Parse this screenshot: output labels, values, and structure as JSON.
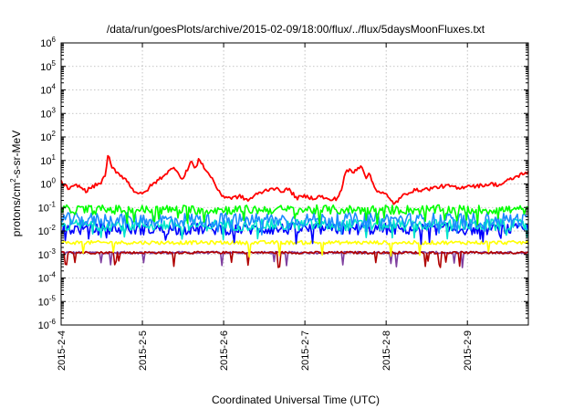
{
  "chart_data": {
    "type": "line",
    "title": "/data/run/goesPlots/archive/2015-02-09/18:00/flux/../flux/5daysMoonFluxes.txt",
    "xlabel": "Coordinated Universal Time (UTC)",
    "ylabel_parts": {
      "base": "protons/cm",
      "sup": "2",
      "rest": "-s-sr-MeV"
    },
    "x_tick_labels": [
      "2015-2-4",
      "2015-2-5",
      "2015-2-6",
      "2015-2-7",
      "2015-2-8",
      "2015-2-9"
    ],
    "y_scale": "log",
    "ylim_exponents": [
      -6,
      6
    ],
    "y_tick_base": "10",
    "y_tick_exponents": [
      "-6",
      "-5",
      "-4",
      "-3",
      "-2",
      "-1",
      "0",
      "1",
      "2",
      "3",
      "4",
      "5",
      "6"
    ],
    "x_range_days": [
      "2015-02-04 00:00",
      "2015-02-09 18:00"
    ],
    "grid": true,
    "legend": "none",
    "series": [
      {
        "color": "#ff0000",
        "x_days": [
          0,
          0.1,
          0.2,
          0.3,
          0.4,
          0.5,
          0.55,
          0.58,
          0.62,
          0.7,
          0.8,
          0.9,
          1.0,
          1.1,
          1.2,
          1.3,
          1.4,
          1.5,
          1.55,
          1.6,
          1.65,
          1.7,
          1.75,
          1.8,
          1.85,
          1.95,
          2.0,
          2.1,
          2.2,
          2.3,
          2.4,
          2.5,
          2.6,
          2.7,
          2.8,
          2.9,
          3.0,
          3.1,
          3.2,
          3.3,
          3.4,
          3.45,
          3.5,
          3.55,
          3.6,
          3.65,
          3.7,
          3.75,
          3.8,
          3.85,
          3.9,
          4.0,
          4.05,
          4.1,
          4.15,
          4.2,
          4.3,
          4.4,
          4.5,
          4.6,
          4.7,
          4.8,
          4.9,
          5.0,
          5.1,
          5.2,
          5.3,
          5.4,
          5.5,
          5.6,
          5.7,
          5.75
        ],
        "y": [
          1.2,
          0.6,
          0.9,
          0.5,
          0.8,
          1.2,
          3,
          18,
          5,
          3,
          1.5,
          0.5,
          0.35,
          0.8,
          1.5,
          3,
          5,
          1.5,
          4,
          10,
          4,
          12,
          6,
          3,
          2,
          0.4,
          0.3,
          0.25,
          0.3,
          0.2,
          0.35,
          0.5,
          0.7,
          0.5,
          0.6,
          0.25,
          0.3,
          0.25,
          0.3,
          0.2,
          0.25,
          0.6,
          3,
          4,
          3,
          5,
          6,
          2,
          2.5,
          0.8,
          0.5,
          0.35,
          0.2,
          0.15,
          0.2,
          0.3,
          0.5,
          0.55,
          0.6,
          0.7,
          0.8,
          0.8,
          0.6,
          0.9,
          0.8,
          0.9,
          1.0,
          0.9,
          1.4,
          2,
          3,
          3
        ],
        "noise_decades": 0.08
      },
      {
        "color": "#00ff00",
        "y_level": 0.08,
        "noise_decades": 0.2
      },
      {
        "color": "#1a8cff",
        "y_level": 0.03,
        "noise_decades": 0.3
      },
      {
        "color": "#00e5cc",
        "y_level": 0.018,
        "noise_decades": 0.25
      },
      {
        "color": "#0000ff",
        "y_level": 0.012,
        "noise_decades": 0.25
      },
      {
        "color": "#ffff00",
        "y_level": 0.0032,
        "noise_decades": 0.08
      },
      {
        "color": "#b00000",
        "y_level": 0.0012,
        "noise_decades": 0.05
      },
      {
        "color": "#7f3f9f",
        "y_level": 0.0012,
        "noise_decades": 0.05
      }
    ]
  }
}
